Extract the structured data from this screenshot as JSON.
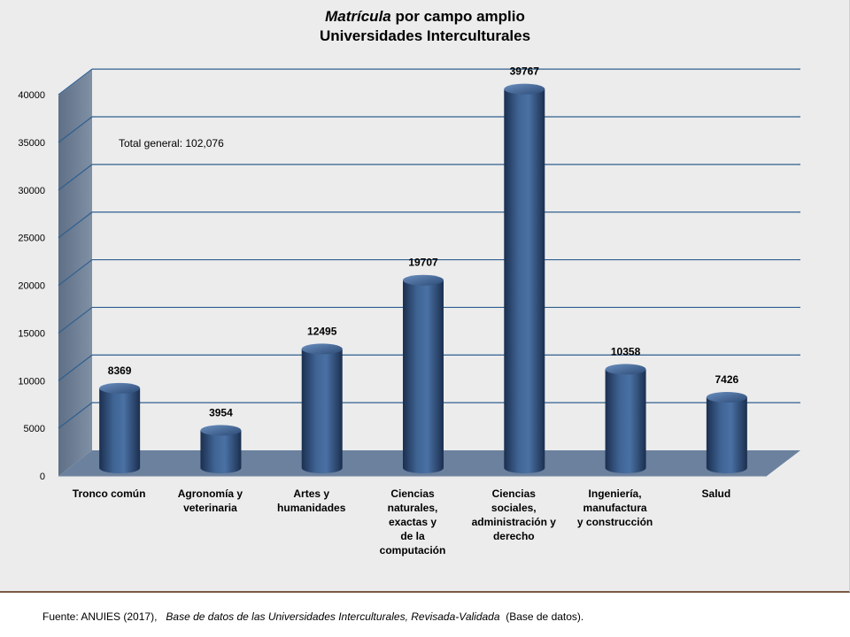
{
  "chart_data": {
    "type": "bar",
    "title_italic": "Matrícula",
    "title_rest": " por campo amplio",
    "subtitle": "Universidades Interculturales",
    "categories": [
      [
        "Tronco común"
      ],
      [
        "Agronomía y",
        "veterinaria"
      ],
      [
        "Artes y",
        "humanidades"
      ],
      [
        "Ciencias",
        "naturales,",
        "exactas y",
        "de la",
        "computación"
      ],
      [
        "Ciencias",
        "sociales,",
        "administración y",
        "derecho"
      ],
      [
        "Ingeniería,",
        "manufactura",
        "y construcción"
      ],
      [
        "Salud"
      ]
    ],
    "values": [
      8369,
      3954,
      12495,
      19707,
      39767,
      10358,
      7426
    ],
    "ylim": [
      0,
      40000
    ],
    "yticks": [
      0,
      5000,
      10000,
      15000,
      20000,
      25000,
      30000,
      35000,
      40000
    ],
    "annotation": "Total general: 102,076",
    "grid": true,
    "colors": {
      "bar_dark": "#1b2f4f",
      "bar_mid": "#3f6494",
      "bar_light": "#5d83b5",
      "floor": "#6b819e",
      "wall": "#6e7f95",
      "grid": "#2f5f8f"
    }
  },
  "source": {
    "prefix": "Fuente: ANUIES (2017),",
    "italic": "Base de datos de las Universidades  Interculturales, Revisada-Validada",
    "suffix": "(Base de datos)."
  }
}
